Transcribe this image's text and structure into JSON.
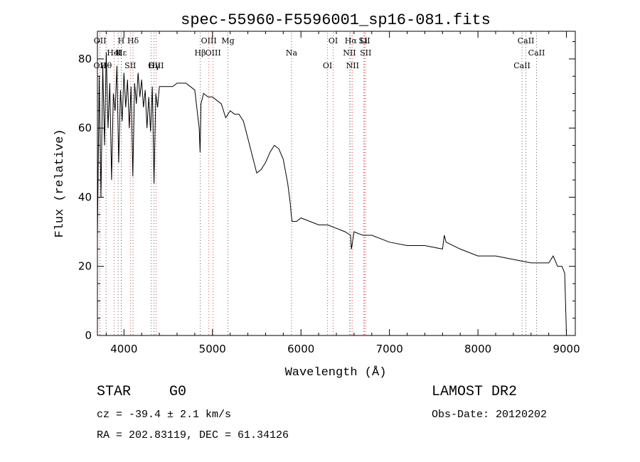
{
  "chart_data": {
    "type": "line",
    "title": "spec-55960-F5596001_sp16-081.fits",
    "xlabel": "Wavelength (Å)",
    "ylabel": "Flux (relative)",
    "xlim": [
      3700,
      9100
    ],
    "ylim": [
      0,
      88
    ],
    "xticks": [
      4000,
      5000,
      6000,
      7000,
      8000,
      9000
    ],
    "yticks": [
      0,
      20,
      40,
      60,
      80
    ],
    "grid": false,
    "series": [
      {
        "color": "#000000",
        "x": [
          3700,
          3720,
          3740,
          3760,
          3780,
          3800,
          3820,
          3840,
          3860,
          3880,
          3900,
          3920,
          3940,
          3960,
          3980,
          4000,
          4020,
          4040,
          4060,
          4080,
          4100,
          4120,
          4140,
          4160,
          4180,
          4200,
          4220,
          4240,
          4260,
          4280,
          4300,
          4320,
          4340,
          4360,
          4380,
          4400,
          4450,
          4500,
          4550,
          4600,
          4650,
          4700,
          4750,
          4800,
          4850,
          4860,
          4870,
          4900,
          4950,
          5000,
          5050,
          5100,
          5150,
          5200,
          5250,
          5300,
          5350,
          5400,
          5450,
          5500,
          5550,
          5600,
          5650,
          5700,
          5750,
          5800,
          5850,
          5880,
          5890,
          5900,
          5950,
          6000,
          6100,
          6200,
          6300,
          6400,
          6500,
          6560,
          6570,
          6600,
          6700,
          6800,
          6900,
          7000,
          7200,
          7400,
          7600,
          7620,
          7640,
          7800,
          8000,
          8200,
          8400,
          8600,
          8700,
          8800,
          8850,
          8900,
          8950,
          8980,
          9000
        ],
        "y": [
          28,
          75,
          40,
          78,
          55,
          82,
          60,
          73,
          45,
          70,
          65,
          78,
          50,
          71,
          62,
          76,
          66,
          74,
          60,
          72,
          46,
          73,
          67,
          76,
          69,
          74,
          66,
          71,
          60,
          69,
          59,
          72,
          44,
          70,
          66,
          72,
          72,
          72,
          72,
          73,
          73,
          73,
          72,
          71,
          60,
          53,
          67,
          70,
          69,
          69,
          68,
          67,
          63,
          65,
          64,
          64,
          62,
          57,
          52,
          47,
          48,
          50,
          53,
          55,
          54,
          51,
          44,
          38,
          35,
          33,
          33,
          34,
          33,
          32,
          32,
          31,
          30,
          29,
          25,
          30,
          29,
          29,
          28,
          27,
          26,
          26,
          25,
          29,
          27,
          25,
          23,
          23,
          22,
          21,
          21,
          21,
          23,
          20,
          20,
          18,
          0
        ]
      }
    ],
    "annotations": [
      {
        "label": "Hα",
        "x": 6563
      },
      {
        "label": "Hβ",
        "x": 4861
      },
      {
        "label": "Hγ",
        "x": 4340
      },
      {
        "label": "Hδ",
        "x": 4102
      },
      {
        "label": "Hε",
        "x": 3970
      },
      {
        "label": "Hθ",
        "x": 3798
      },
      {
        "label": "H",
        "x": 3969
      },
      {
        "label": "K",
        "x": 3934
      },
      {
        "label": "G",
        "x": 4308
      },
      {
        "label": "Mg",
        "x": 5175
      },
      {
        "label": "Na",
        "x": 5893
      },
      {
        "label": "CaII",
        "x": 8498
      },
      {
        "label": "CaII",
        "x": 8542
      },
      {
        "label": "CaII",
        "x": 8662
      },
      {
        "label": "OII",
        "x": 3727
      },
      {
        "label": "OII",
        "x": 3729
      },
      {
        "label": "HeI",
        "x": 3889
      },
      {
        "label": "SII",
        "x": 4072
      },
      {
        "label": "SII",
        "x": 6717
      },
      {
        "label": "SII",
        "x": 6731
      },
      {
        "label": "OIII",
        "x": 4363
      },
      {
        "label": "OIII",
        "x": 4959
      },
      {
        "label": "OIII",
        "x": 5007
      },
      {
        "label": "OI",
        "x": 6300
      },
      {
        "label": "OI",
        "x": 6364
      },
      {
        "label": "NII",
        "x": 6548
      },
      {
        "label": "NII",
        "x": 6583
      },
      {
        "label": "Li",
        "x": 6708
      }
    ]
  },
  "info": {
    "class_label": "STAR",
    "subclass": "G0",
    "survey": "LAMOST DR2",
    "redshift_line": "cz = -39.4 ± 2.1 km/s",
    "obs_date": "Obs-Date: 20120202",
    "coords": "RA = 202.83119, DEC =  61.34126"
  }
}
